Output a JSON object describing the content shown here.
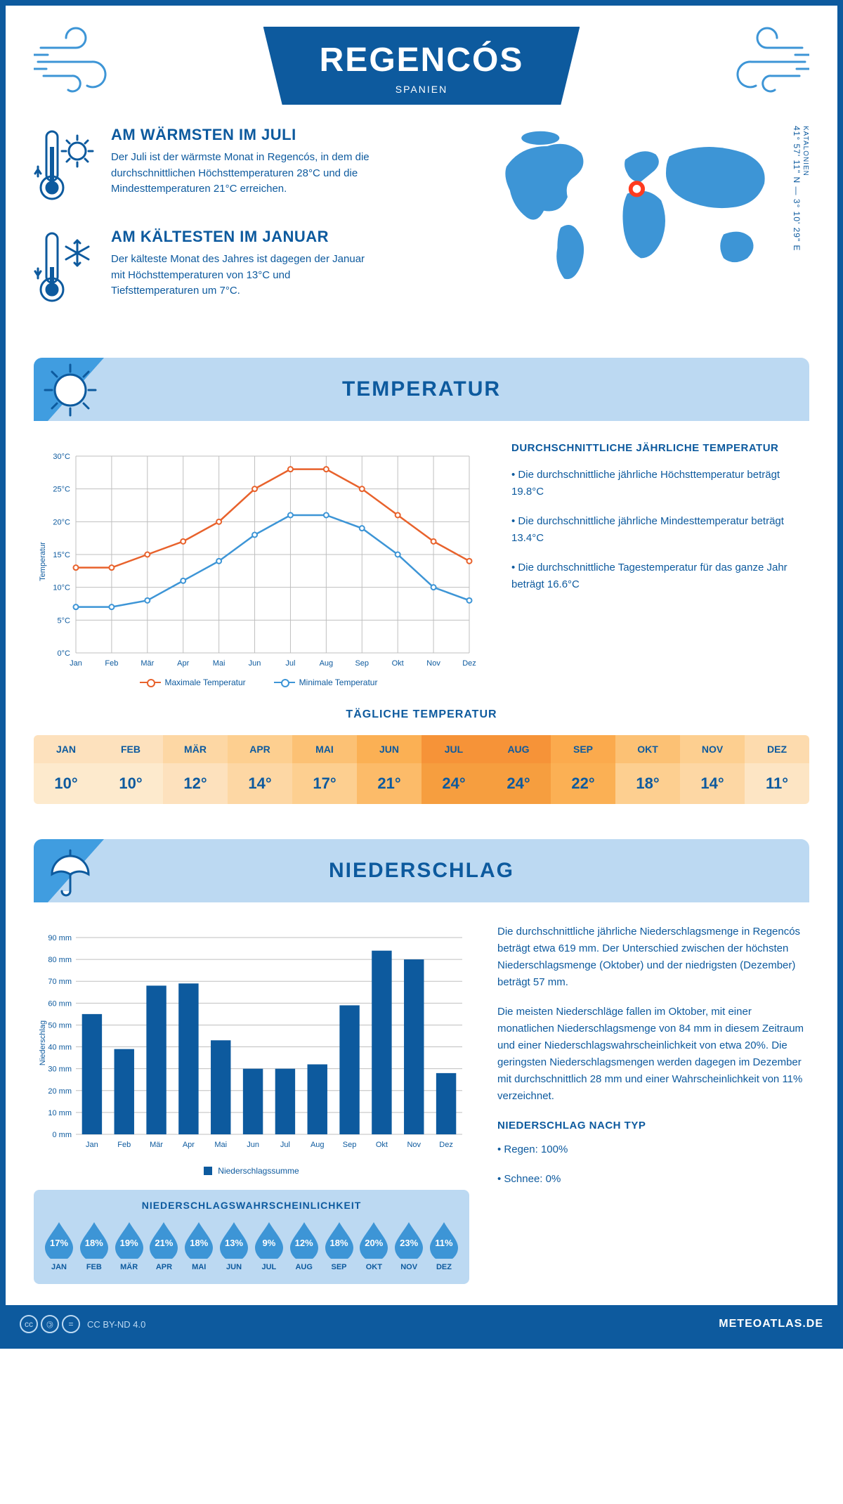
{
  "header": {
    "title": "REGENCÓS",
    "subtitle": "SPANIEN"
  },
  "coords": {
    "lat": "41° 57' 11\" N — 3° 10' 29\" E",
    "region": "KATALONIEN"
  },
  "warm": {
    "title": "AM WÄRMSTEN IM JULI",
    "text": "Der Juli ist der wärmste Monat in Regencós, in dem die durchschnittlichen Höchsttemperaturen 28°C und die Mindesttemperaturen 21°C erreichen."
  },
  "cold": {
    "title": "AM KÄLTESTEN IM JANUAR",
    "text": "Der kälteste Monat des Jahres ist dagegen der Januar mit Höchsttemperaturen von 13°C und Tiefsttemperaturen um 7°C."
  },
  "section_temp": "TEMPERATUR",
  "section_precip": "NIEDERSCHLAG",
  "temp_chart": {
    "type": "line",
    "months": [
      "Jan",
      "Feb",
      "Mär",
      "Apr",
      "Mai",
      "Jun",
      "Jul",
      "Aug",
      "Sep",
      "Okt",
      "Nov",
      "Dez"
    ],
    "max": [
      13,
      13,
      15,
      17,
      20,
      25,
      28,
      28,
      25,
      21,
      17,
      14
    ],
    "min": [
      7,
      7,
      8,
      11,
      14,
      18,
      21,
      21,
      19,
      15,
      10,
      8
    ],
    "ylim": [
      0,
      30
    ],
    "ytick_step": 5,
    "ylabel": "Temperatur",
    "max_color": "#e8622c",
    "min_color": "#3d95d6",
    "grid_color": "#bfbfbf",
    "background": "#ffffff",
    "line_width": 2.5,
    "marker": "circle",
    "marker_size": 7,
    "legend_max": "Maximale Temperatur",
    "legend_min": "Minimale Temperatur"
  },
  "temp_facts": {
    "title": "DURCHSCHNITTLICHE JÄHRLICHE TEMPERATUR",
    "b1": "• Die durchschnittliche jährliche Höchsttemperatur beträgt 19.8°C",
    "b2": "• Die durchschnittliche jährliche Mindesttemperatur beträgt 13.4°C",
    "b3": "• Die durchschnittliche Tagestemperatur für das ganze Jahr beträgt 16.6°C"
  },
  "daily": {
    "title": "TÄGLICHE TEMPERATUR",
    "months": [
      "JAN",
      "FEB",
      "MÄR",
      "APR",
      "MAI",
      "JUN",
      "JUL",
      "AUG",
      "SEP",
      "OKT",
      "NOV",
      "DEZ"
    ],
    "values": [
      "10°",
      "10°",
      "12°",
      "14°",
      "17°",
      "21°",
      "24°",
      "24°",
      "22°",
      "18°",
      "14°",
      "11°"
    ],
    "head_colors": [
      "#fde1bd",
      "#fde1bd",
      "#fdd7a4",
      "#fdcf90",
      "#fcc174",
      "#fbb054",
      "#f69338",
      "#f69338",
      "#fbaa4d",
      "#fcc174",
      "#fdcf90",
      "#fddbae"
    ],
    "body_colors": [
      "#fdeacd",
      "#fdeacd",
      "#fde1bd",
      "#fdd7a4",
      "#fdcf90",
      "#fcbb69",
      "#f69e3f",
      "#f69e3f",
      "#fbb054",
      "#fdcf90",
      "#fdd7a4",
      "#fde5c4"
    ]
  },
  "precip_chart": {
    "type": "bar",
    "months": [
      "Jan",
      "Feb",
      "Mär",
      "Apr",
      "Mai",
      "Jun",
      "Jul",
      "Aug",
      "Sep",
      "Okt",
      "Nov",
      "Dez"
    ],
    "values": [
      55,
      39,
      68,
      69,
      43,
      30,
      30,
      32,
      59,
      84,
      80,
      28
    ],
    "ylim": [
      0,
      90
    ],
    "ytick_step": 10,
    "ylabel": "Niederschlag",
    "bar_color": "#0d5a9e",
    "grid_color": "#bfbfbf",
    "bar_width": 0.62,
    "legend": "Niederschlagssumme"
  },
  "precip_text": {
    "p1": "Die durchschnittliche jährliche Niederschlagsmenge in Regencós beträgt etwa 619 mm. Der Unterschied zwischen der höchsten Niederschlagsmenge (Oktober) und der niedrigsten (Dezember) beträgt 57 mm.",
    "p2": "Die meisten Niederschläge fallen im Oktober, mit einer monatlichen Niederschlagsmenge von 84 mm in diesem Zeitraum und einer Niederschlagswahrscheinlichkeit von etwa 20%. Die geringsten Niederschlagsmengen werden dagegen im Dezember mit durchschnittlich 28 mm und einer Wahrscheinlichkeit von 11% verzeichnet.",
    "h": "NIEDERSCHLAG NACH TYP",
    "b1": "• Regen: 100%",
    "b2": "• Schnee: 0%"
  },
  "prob": {
    "title": "NIEDERSCHLAGSWAHRSCHEINLICHKEIT",
    "months": [
      "JAN",
      "FEB",
      "MÄR",
      "APR",
      "MAI",
      "JUN",
      "JUL",
      "AUG",
      "SEP",
      "OKT",
      "NOV",
      "DEZ"
    ],
    "values": [
      "17%",
      "18%",
      "19%",
      "21%",
      "18%",
      "13%",
      "9%",
      "12%",
      "18%",
      "20%",
      "23%",
      "11%"
    ],
    "drop_color": "#3d95d6"
  },
  "footer": {
    "license": "CC BY-ND 4.0",
    "site": "METEOATLAS.DE"
  }
}
